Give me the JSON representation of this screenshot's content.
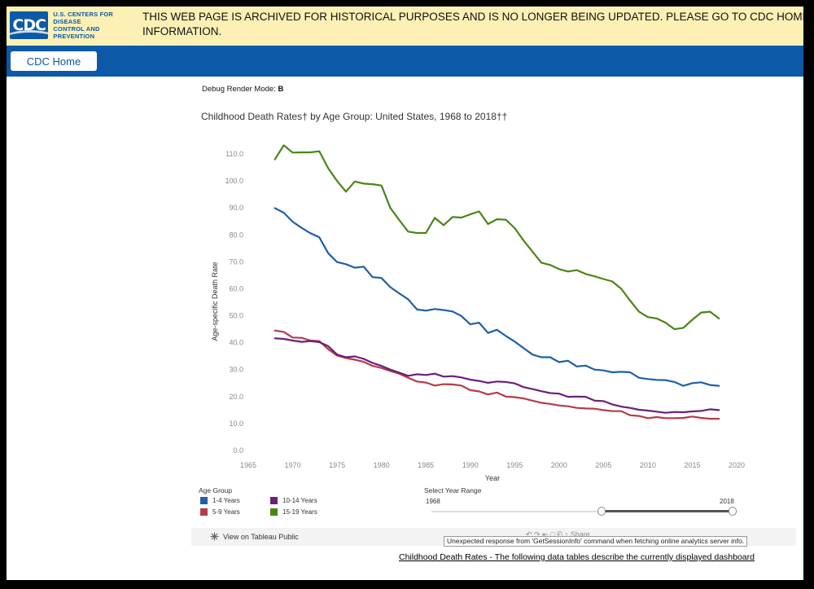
{
  "banner": {
    "logo_mark": "CDC",
    "logo_line1": "U.S. CENTERS FOR DISEASE",
    "logo_line2": "CONTROL AND PREVENTION",
    "message_line1": "THIS WEB PAGE IS ARCHIVED FOR HISTORICAL PURPOSES AND IS NO LONGER BEING UPDATED. PLEASE GO TO CDC HOME OR USE THE A-Z I",
    "message_line2": "INFORMATION."
  },
  "nav": {
    "home_label": "CDC Home"
  },
  "debug": {
    "label": "Debug Render Mode:",
    "value": "B"
  },
  "legend": {
    "title": "Age Group",
    "items": [
      "1-4 Years",
      "5-9 Years",
      "10-14 Years",
      "15-19 Years"
    ]
  },
  "range": {
    "title": "Select Year Range",
    "min_label": "1968",
    "max_label": "2018",
    "selected_start_fraction": 0.56
  },
  "footer": {
    "tableau_link": "View on Tableau Public",
    "toolbar_ghost": "↶      ↷      ⇤              □      ⎗      ↑ Share",
    "error_note": "Unexpected response from 'GetSessionInfo' command when fetching online analytics server info.",
    "data_link": "Childhood Death Rates - The following data tables describe the currently displayed dashboard"
  },
  "colors": {
    "s1": "#1f5fa8",
    "s2": "#b53b48",
    "s3": "#6b1f7b",
    "s4": "#4c8417"
  },
  "chart_data": {
    "type": "line",
    "title": "Childhood Death Rates† by Age Group: United States, 1968 to 2018††",
    "xlabel": "Year",
    "ylabel": "Age-specific Death Rate",
    "xlim": [
      1965,
      2020
    ],
    "ylim": [
      0,
      110
    ],
    "xticks": [
      1965,
      1970,
      1975,
      1980,
      1985,
      1990,
      1995,
      2000,
      2005,
      2010,
      2015,
      2020
    ],
    "yticks": [
      "0.0",
      "10.0",
      "20.0",
      "30.0",
      "40.0",
      "50.0",
      "60.0",
      "70.0",
      "80.0",
      "90.0",
      "100.0",
      "110.0"
    ],
    "x": [
      1968,
      1969,
      1970,
      1971,
      1972,
      1973,
      1974,
      1975,
      1976,
      1977,
      1978,
      1979,
      1980,
      1981,
      1982,
      1983,
      1984,
      1985,
      1986,
      1987,
      1988,
      1989,
      1990,
      1991,
      1992,
      1993,
      1994,
      1995,
      1996,
      1997,
      1998,
      1999,
      2000,
      2001,
      2002,
      2003,
      2004,
      2005,
      2006,
      2007,
      2008,
      2009,
      2010,
      2011,
      2012,
      2013,
      2014,
      2015,
      2016,
      2017,
      2018
    ],
    "series": [
      {
        "name": "1-4 Years",
        "values": [
          89.9,
          88.2,
          84.9,
          82.6,
          80.6,
          79.1,
          73.2,
          69.9,
          69.1,
          67.8,
          68.2,
          64.3,
          64.0,
          60.6,
          58.3,
          56.1,
          52.3,
          51.9,
          52.5,
          52.1,
          51.6,
          49.9,
          46.8,
          47.4,
          43.6,
          44.8,
          42.5,
          40.4,
          38.0,
          35.6,
          34.6,
          34.6,
          32.8,
          33.3,
          31.2,
          31.5,
          30.0,
          29.7,
          29.0,
          29.2,
          29.0,
          27.0,
          26.5,
          26.2,
          26.1,
          25.4,
          24.0,
          25.0,
          25.3,
          24.3,
          24.0
        ]
      },
      {
        "name": "5-9 Years",
        "values": [
          44.5,
          44.0,
          41.9,
          41.8,
          40.8,
          40.6,
          37.6,
          35.2,
          34.3,
          33.7,
          32.9,
          31.4,
          30.6,
          29.5,
          28.5,
          27.0,
          25.6,
          25.2,
          24.1,
          24.6,
          24.5,
          24.1,
          22.4,
          21.9,
          20.8,
          21.5,
          20.0,
          19.8,
          19.3,
          18.5,
          17.7,
          17.3,
          16.7,
          16.4,
          15.8,
          15.6,
          15.5,
          15.0,
          14.6,
          14.6,
          13.1,
          12.8,
          12.0,
          12.4,
          12.0,
          12.0,
          12.1,
          12.6,
          12.1,
          11.8,
          11.8
        ]
      },
      {
        "name": "10-14 Years",
        "values": [
          41.6,
          41.4,
          40.8,
          40.3,
          40.6,
          40.2,
          38.7,
          35.6,
          34.6,
          34.9,
          34.0,
          32.5,
          31.4,
          30.0,
          28.9,
          27.7,
          28.3,
          28.0,
          28.5,
          27.4,
          27.6,
          27.1,
          26.3,
          25.8,
          25.1,
          25.6,
          25.4,
          24.9,
          23.5,
          22.8,
          22.0,
          21.3,
          21.1,
          19.9,
          20.0,
          19.9,
          18.5,
          18.3,
          17.1,
          16.3,
          15.8,
          15.1,
          14.8,
          14.4,
          14.0,
          14.3,
          14.2,
          14.5,
          14.7,
          15.3,
          15.0
        ]
      },
      {
        "name": "15-19 Years",
        "values": [
          108.0,
          113.2,
          110.5,
          110.6,
          110.6,
          111.0,
          104.7,
          100.0,
          96.0,
          99.8,
          99.0,
          98.8,
          98.3,
          90.0,
          85.5,
          81.2,
          80.7,
          80.7,
          86.3,
          83.6,
          86.6,
          86.4,
          87.6,
          88.7,
          84.0,
          85.8,
          85.6,
          82.5,
          77.9,
          73.8,
          69.7,
          68.8,
          67.3,
          66.4,
          66.9,
          65.5,
          64.6,
          63.6,
          62.7,
          60.0,
          55.6,
          51.5,
          49.5,
          49.0,
          47.4,
          45.0,
          45.5,
          48.5,
          51.2,
          51.5,
          49.0
        ]
      }
    ]
  }
}
